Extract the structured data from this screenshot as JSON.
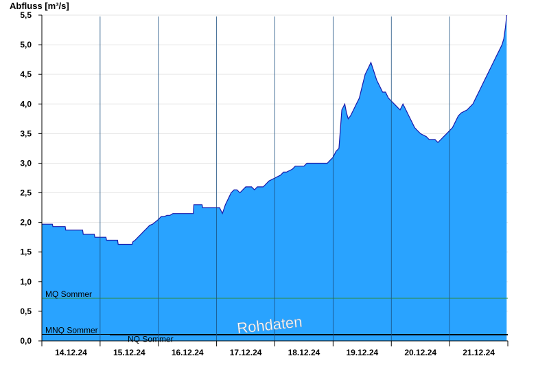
{
  "chart_data": {
    "type": "area",
    "ylabel": "Abfluss [m³/s]",
    "watermark": "Rohdaten",
    "ylim": [
      0,
      5.5
    ],
    "y_ticks": [
      "0,0",
      "0,5",
      "1,0",
      "1,5",
      "2,0",
      "2,5",
      "3,0",
      "3,5",
      "4,0",
      "4,5",
      "5,0",
      "5,5"
    ],
    "x_day_labels": [
      "14.12.24",
      "15.12.24",
      "16.12.24",
      "17.12.24",
      "18.12.24",
      "19.12.24",
      "20.12.24",
      "21.12.24"
    ],
    "xlim_days": [
      0,
      8
    ],
    "fill_color": "#29a3ff",
    "line_color": "#1a1aaa",
    "reference_lines": [
      {
        "label": "MQ Sommer",
        "value": 0.72,
        "color": "#2e8b3a"
      },
      {
        "label": "MNQ Sommer",
        "value": 0.11,
        "color": "#000000"
      },
      {
        "label": "NQ Sommer",
        "value": 0.11,
        "color": "#000000"
      }
    ],
    "series": [
      {
        "x": [
          0.0,
          0.18,
          0.19,
          0.4,
          0.41,
          0.7,
          0.71,
          0.9,
          0.91,
          1.1,
          1.11,
          1.3,
          1.31,
          1.55,
          1.56,
          1.6,
          1.65,
          1.7,
          1.75,
          1.8,
          1.85,
          1.9,
          2.0,
          2.05,
          2.1,
          2.15,
          2.2,
          2.25,
          2.3,
          2.6,
          2.61,
          2.75,
          2.76,
          3.05,
          3.1,
          3.15,
          3.2,
          3.25,
          3.3,
          3.35,
          3.4,
          3.45,
          3.5,
          3.55,
          3.6,
          3.65,
          3.7,
          3.8,
          3.85,
          3.9,
          4.0,
          4.1,
          4.15,
          4.2,
          4.3,
          4.35,
          4.5,
          4.55,
          4.9,
          4.95,
          5.0,
          5.05,
          5.1,
          5.15,
          5.2,
          5.23,
          5.26,
          5.3,
          5.35,
          5.4,
          5.45,
          5.5,
          5.55,
          5.6,
          5.65,
          5.7,
          5.75,
          5.8,
          5.85,
          5.9,
          5.95,
          6.0,
          6.05,
          6.1,
          6.15,
          6.2,
          6.25,
          6.3,
          6.35,
          6.4,
          6.45,
          6.5,
          6.6,
          6.65,
          6.7,
          6.75,
          6.8,
          6.85,
          6.9,
          6.95,
          7.0,
          7.05,
          7.1,
          7.15,
          7.2,
          7.3,
          7.35,
          7.4,
          7.45,
          7.5,
          7.55,
          7.6,
          7.65,
          7.7,
          7.75,
          7.8,
          7.85,
          7.9,
          7.93,
          7.96,
          7.98
        ],
        "y": [
          1.97,
          1.97,
          1.93,
          1.93,
          1.87,
          1.87,
          1.8,
          1.8,
          1.75,
          1.75,
          1.7,
          1.7,
          1.63,
          1.63,
          1.67,
          1.7,
          1.75,
          1.8,
          1.85,
          1.9,
          1.95,
          1.97,
          2.05,
          2.1,
          2.1,
          2.12,
          2.12,
          2.15,
          2.15,
          2.15,
          2.3,
          2.3,
          2.25,
          2.25,
          2.15,
          2.3,
          2.4,
          2.5,
          2.55,
          2.55,
          2.5,
          2.55,
          2.6,
          2.6,
          2.6,
          2.55,
          2.6,
          2.6,
          2.65,
          2.7,
          2.75,
          2.8,
          2.85,
          2.85,
          2.9,
          2.95,
          2.95,
          3.0,
          3.0,
          3.05,
          3.1,
          3.2,
          3.25,
          3.9,
          4.0,
          3.85,
          3.75,
          3.8,
          3.9,
          4.0,
          4.1,
          4.3,
          4.5,
          4.6,
          4.7,
          4.55,
          4.4,
          4.3,
          4.2,
          4.2,
          4.1,
          4.05,
          4.0,
          3.95,
          3.9,
          4.0,
          3.9,
          3.8,
          3.7,
          3.6,
          3.55,
          3.5,
          3.45,
          3.4,
          3.4,
          3.4,
          3.35,
          3.4,
          3.45,
          3.5,
          3.55,
          3.6,
          3.7,
          3.8,
          3.85,
          3.9,
          3.95,
          4.0,
          4.1,
          4.2,
          4.3,
          4.4,
          4.5,
          4.6,
          4.7,
          4.8,
          4.9,
          5.0,
          5.1,
          5.3,
          5.5
        ]
      }
    ]
  }
}
